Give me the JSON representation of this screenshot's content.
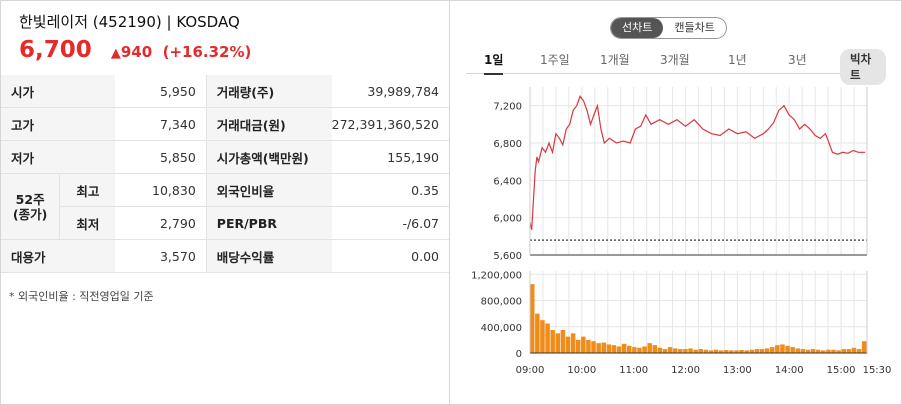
{
  "header": {
    "title": "한빛레이저 (452190) | KOSDAQ",
    "price": "6,700",
    "change": "940",
    "change_pct": "(+16.32%)",
    "up_color": "#e52a2a"
  },
  "table": {
    "rows": [
      {
        "l1": "시가",
        "v1": "5,950",
        "l2": "거래량(주)",
        "v2": "39,989,784"
      },
      {
        "l1": "고가",
        "v1": "7,340",
        "l2": "거래대금(원)",
        "v2": "272,391,360,520"
      },
      {
        "l1": "저가",
        "v1": "5,850",
        "l2": "시가총액(백만원)",
        "v2": "155,190"
      },
      {
        "l1": "최고",
        "v1": "10,830",
        "l2": "외국인비율",
        "v2": "0.35"
      },
      {
        "l1": "최저",
        "v1": "2,790",
        "l2": "PER/PBR",
        "v2": "-/6.07"
      },
      {
        "l1": "대용가",
        "v1": "3,570",
        "l2": "배당수익률",
        "v2": "0.00"
      }
    ],
    "week52_line1": "52주",
    "week52_line2": "(종가)"
  },
  "note": "* 외국인비율 : 직전영업일 기준",
  "toggle": {
    "line": "선차트",
    "candle": "캔들차트"
  },
  "tabs": [
    "1일",
    "1주일",
    "1개월",
    "3개월",
    "1년",
    "3년"
  ],
  "bigchart_label": "빅차트",
  "chart_data": {
    "type": "line",
    "price_line_color": "#d9363e",
    "volume_color": "#f08c1a",
    "reference_price": 5760,
    "price_ylim": [
      5600,
      7400
    ],
    "price_ticks": [
      "7,200",
      "6,800",
      "6,400",
      "6,000",
      "5,600"
    ],
    "price_tick_values": [
      7200,
      6800,
      6400,
      6000,
      5600
    ],
    "volume_ylim": [
      0,
      1250000
    ],
    "volume_ticks": [
      "1,200,000",
      "800,000",
      "400,000",
      "0"
    ],
    "volume_tick_values": [
      1200000,
      800000,
      400000,
      0
    ],
    "x_labels": [
      "09:00",
      "10:00",
      "11:00",
      "12:00",
      "13:00",
      "14:00",
      "15:00",
      "15:30"
    ],
    "x_label_minutes": [
      0,
      60,
      120,
      180,
      240,
      300,
      360,
      390
    ],
    "price_points": [
      [
        0,
        5950
      ],
      [
        2,
        5870
      ],
      [
        4,
        6200
      ],
      [
        6,
        6500
      ],
      [
        8,
        6650
      ],
      [
        10,
        6600
      ],
      [
        14,
        6750
      ],
      [
        18,
        6700
      ],
      [
        22,
        6800
      ],
      [
        26,
        6700
      ],
      [
        30,
        6900
      ],
      [
        34,
        6850
      ],
      [
        38,
        6780
      ],
      [
        42,
        6950
      ],
      [
        46,
        7000
      ],
      [
        50,
        7150
      ],
      [
        54,
        7200
      ],
      [
        58,
        7300
      ],
      [
        62,
        7250
      ],
      [
        66,
        7150
      ],
      [
        70,
        7000
      ],
      [
        74,
        7100
      ],
      [
        78,
        7200
      ],
      [
        82,
        6950
      ],
      [
        86,
        6800
      ],
      [
        92,
        6850
      ],
      [
        100,
        6800
      ],
      [
        108,
        6820
      ],
      [
        116,
        6800
      ],
      [
        122,
        6950
      ],
      [
        128,
        6980
      ],
      [
        134,
        7100
      ],
      [
        140,
        7000
      ],
      [
        150,
        7050
      ],
      [
        160,
        7000
      ],
      [
        170,
        7050
      ],
      [
        180,
        6980
      ],
      [
        190,
        7050
      ],
      [
        200,
        6950
      ],
      [
        210,
        6900
      ],
      [
        220,
        6880
      ],
      [
        230,
        6950
      ],
      [
        240,
        6900
      ],
      [
        250,
        6920
      ],
      [
        260,
        6850
      ],
      [
        270,
        6900
      ],
      [
        276,
        6950
      ],
      [
        282,
        7020
      ],
      [
        288,
        7150
      ],
      [
        294,
        7200
      ],
      [
        300,
        7100
      ],
      [
        306,
        7050
      ],
      [
        312,
        6950
      ],
      [
        318,
        7000
      ],
      [
        324,
        6950
      ],
      [
        330,
        6880
      ],
      [
        336,
        6850
      ],
      [
        342,
        6900
      ],
      [
        346,
        6800
      ],
      [
        350,
        6700
      ],
      [
        356,
        6680
      ],
      [
        362,
        6700
      ],
      [
        368,
        6690
      ],
      [
        374,
        6720
      ],
      [
        380,
        6700
      ],
      [
        388,
        6700
      ]
    ],
    "volume_max_per_bar": [
      1050000,
      600000,
      500000,
      450000,
      350000,
      300000,
      350000,
      250000,
      300000,
      200000,
      250000,
      200000,
      180000,
      150000,
      160000,
      130000,
      120000,
      100000,
      140000,
      110000,
      90000,
      80000,
      100000,
      150000,
      120000,
      80000,
      60000,
      90000,
      70000,
      60000,
      60000,
      70000,
      50000,
      60000,
      50000,
      40000,
      50000,
      40000,
      45000,
      40000,
      40000,
      45000,
      40000,
      50000,
      60000,
      60000,
      70000,
      90000,
      120000,
      130000,
      110000,
      90000,
      70000,
      60000,
      50000,
      60000,
      50000,
      40000,
      50000,
      50000,
      40000,
      60000,
      60000,
      80000,
      60000,
      180000
    ]
  }
}
